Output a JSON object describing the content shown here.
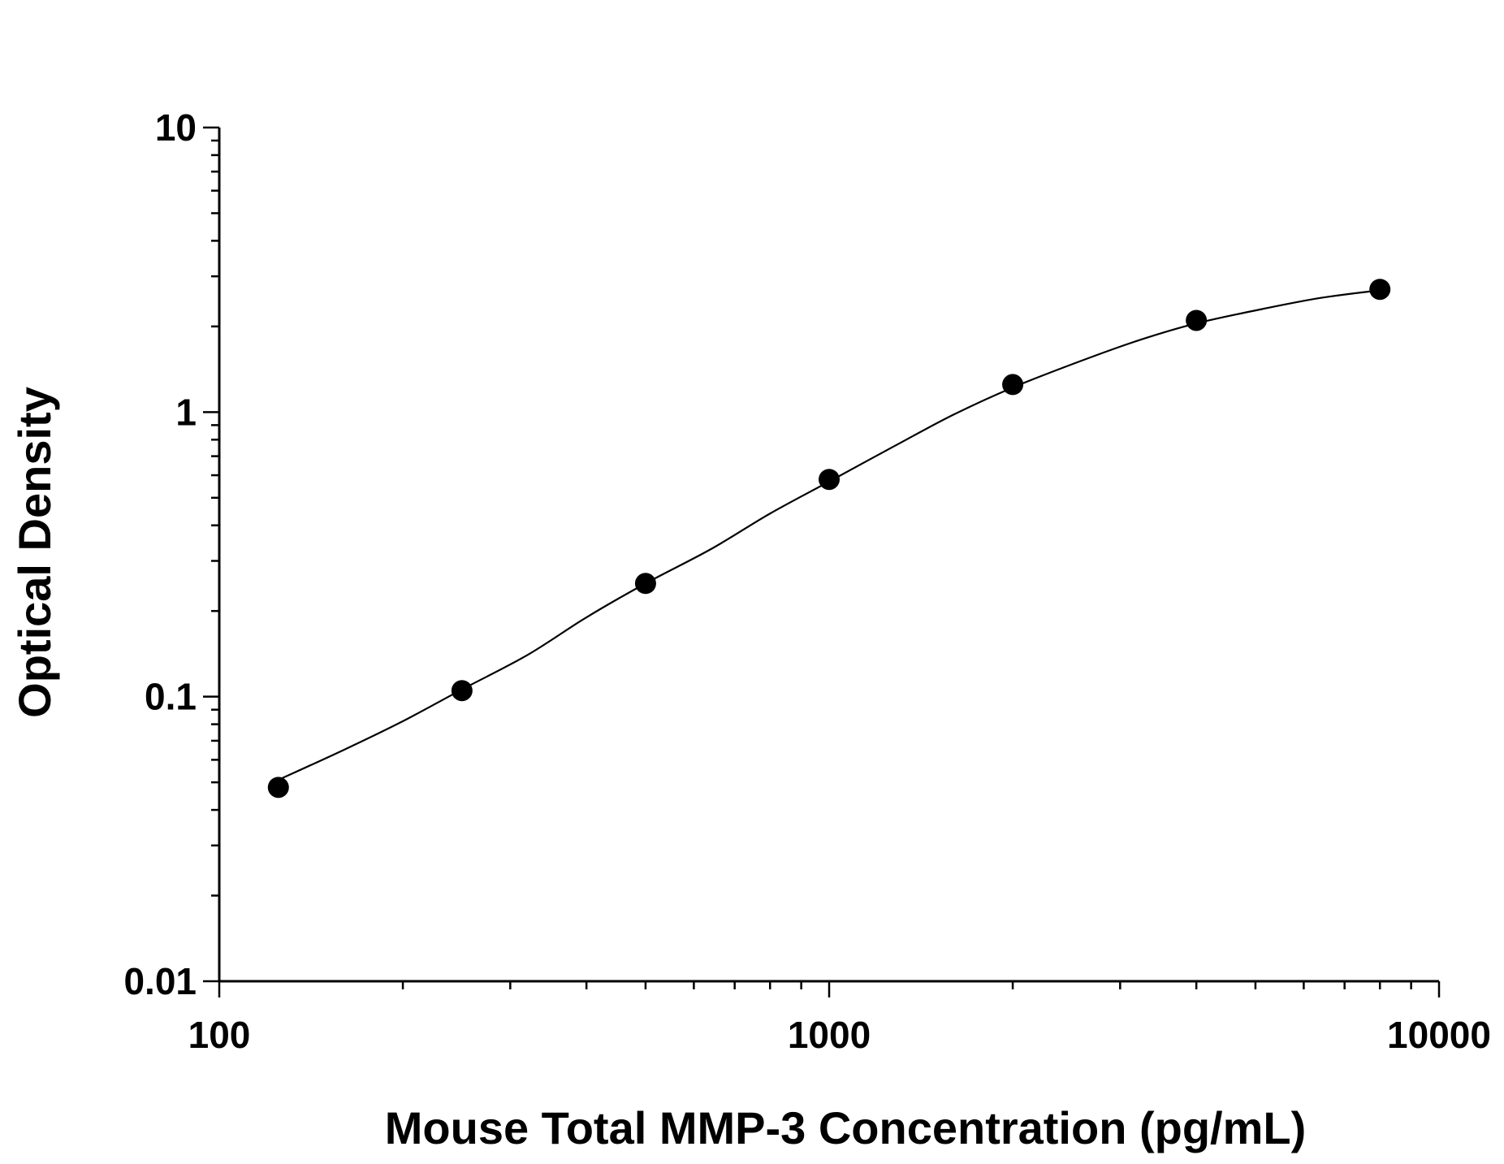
{
  "chart_data": {
    "type": "scatter",
    "xlabel": "Mouse Total MMP-3 Concentration (pg/mL)",
    "ylabel": "Optical Density",
    "x_scale": "log",
    "y_scale": "log",
    "xlim": [
      100,
      10000
    ],
    "ylim": [
      0.01,
      10
    ],
    "x_tick_labels": [
      "100",
      "1000",
      "10000"
    ],
    "y_tick_labels": [
      "0.01",
      "0.1",
      "1",
      "10"
    ],
    "grid": false,
    "legend": "none",
    "series": [
      {
        "marker": "filled-circle",
        "color": "#000000",
        "x": [
          125,
          250,
          500,
          1000,
          2000,
          4000,
          8000
        ],
        "y": [
          0.048,
          0.105,
          0.25,
          0.58,
          1.25,
          2.1,
          2.7
        ]
      }
    ],
    "fit_curve": {
      "style": "line",
      "color": "#000000",
      "x": [
        125,
        160,
        200,
        250,
        320,
        400,
        500,
        640,
        800,
        1000,
        1280,
        1600,
        2000,
        2560,
        3200,
        4000,
        5120,
        6400,
        8000
      ],
      "y": [
        0.051,
        0.065,
        0.082,
        0.106,
        0.14,
        0.19,
        0.25,
        0.33,
        0.44,
        0.57,
        0.76,
        0.98,
        1.22,
        1.5,
        1.78,
        2.05,
        2.3,
        2.52,
        2.68
      ]
    }
  }
}
